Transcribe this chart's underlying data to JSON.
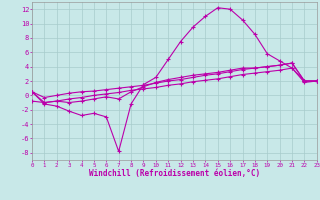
{
  "background_color": "#c8e8e8",
  "grid_color": "#a8cccc",
  "line_color": "#bb00aa",
  "x_values": [
    0,
    1,
    2,
    3,
    4,
    5,
    6,
    7,
    8,
    9,
    10,
    11,
    12,
    13,
    14,
    15,
    16,
    17,
    18,
    19,
    20,
    21,
    22,
    23
  ],
  "ylim": [
    -9,
    13
  ],
  "xlim": [
    0,
    23
  ],
  "yticks": [
    -8,
    -6,
    -4,
    -2,
    0,
    2,
    4,
    6,
    8,
    10,
    12
  ],
  "xlabel": "Windchill (Refroidissement éolien,°C)",
  "series1": [
    0.5,
    -1.2,
    -1.5,
    -2.2,
    -2.8,
    -2.5,
    -3.0,
    -7.8,
    -1.2,
    1.5,
    2.5,
    5.0,
    7.5,
    9.5,
    11.0,
    12.2,
    12.0,
    10.5,
    8.5,
    5.8,
    4.8,
    3.8,
    2.0,
    2.0
  ],
  "series2": [
    0.5,
    -1.0,
    -0.8,
    -1.0,
    -0.8,
    -0.5,
    -0.2,
    -0.5,
    0.5,
    1.2,
    1.8,
    2.2,
    2.5,
    2.8,
    3.0,
    3.2,
    3.5,
    3.8,
    3.8,
    4.0,
    4.2,
    4.5,
    2.0,
    2.0
  ],
  "series3": [
    0.5,
    -0.3,
    0.0,
    0.3,
    0.5,
    0.6,
    0.8,
    1.0,
    1.2,
    1.4,
    1.7,
    2.0,
    2.2,
    2.5,
    2.8,
    3.0,
    3.3,
    3.6,
    3.8,
    4.0,
    4.2,
    4.5,
    2.0,
    2.0
  ],
  "series4": [
    -0.8,
    -1.0,
    -0.8,
    -0.5,
    -0.3,
    -0.0,
    0.2,
    0.4,
    0.7,
    0.9,
    1.1,
    1.4,
    1.6,
    1.9,
    2.1,
    2.3,
    2.6,
    2.9,
    3.1,
    3.3,
    3.5,
    3.8,
    1.8,
    2.0
  ]
}
